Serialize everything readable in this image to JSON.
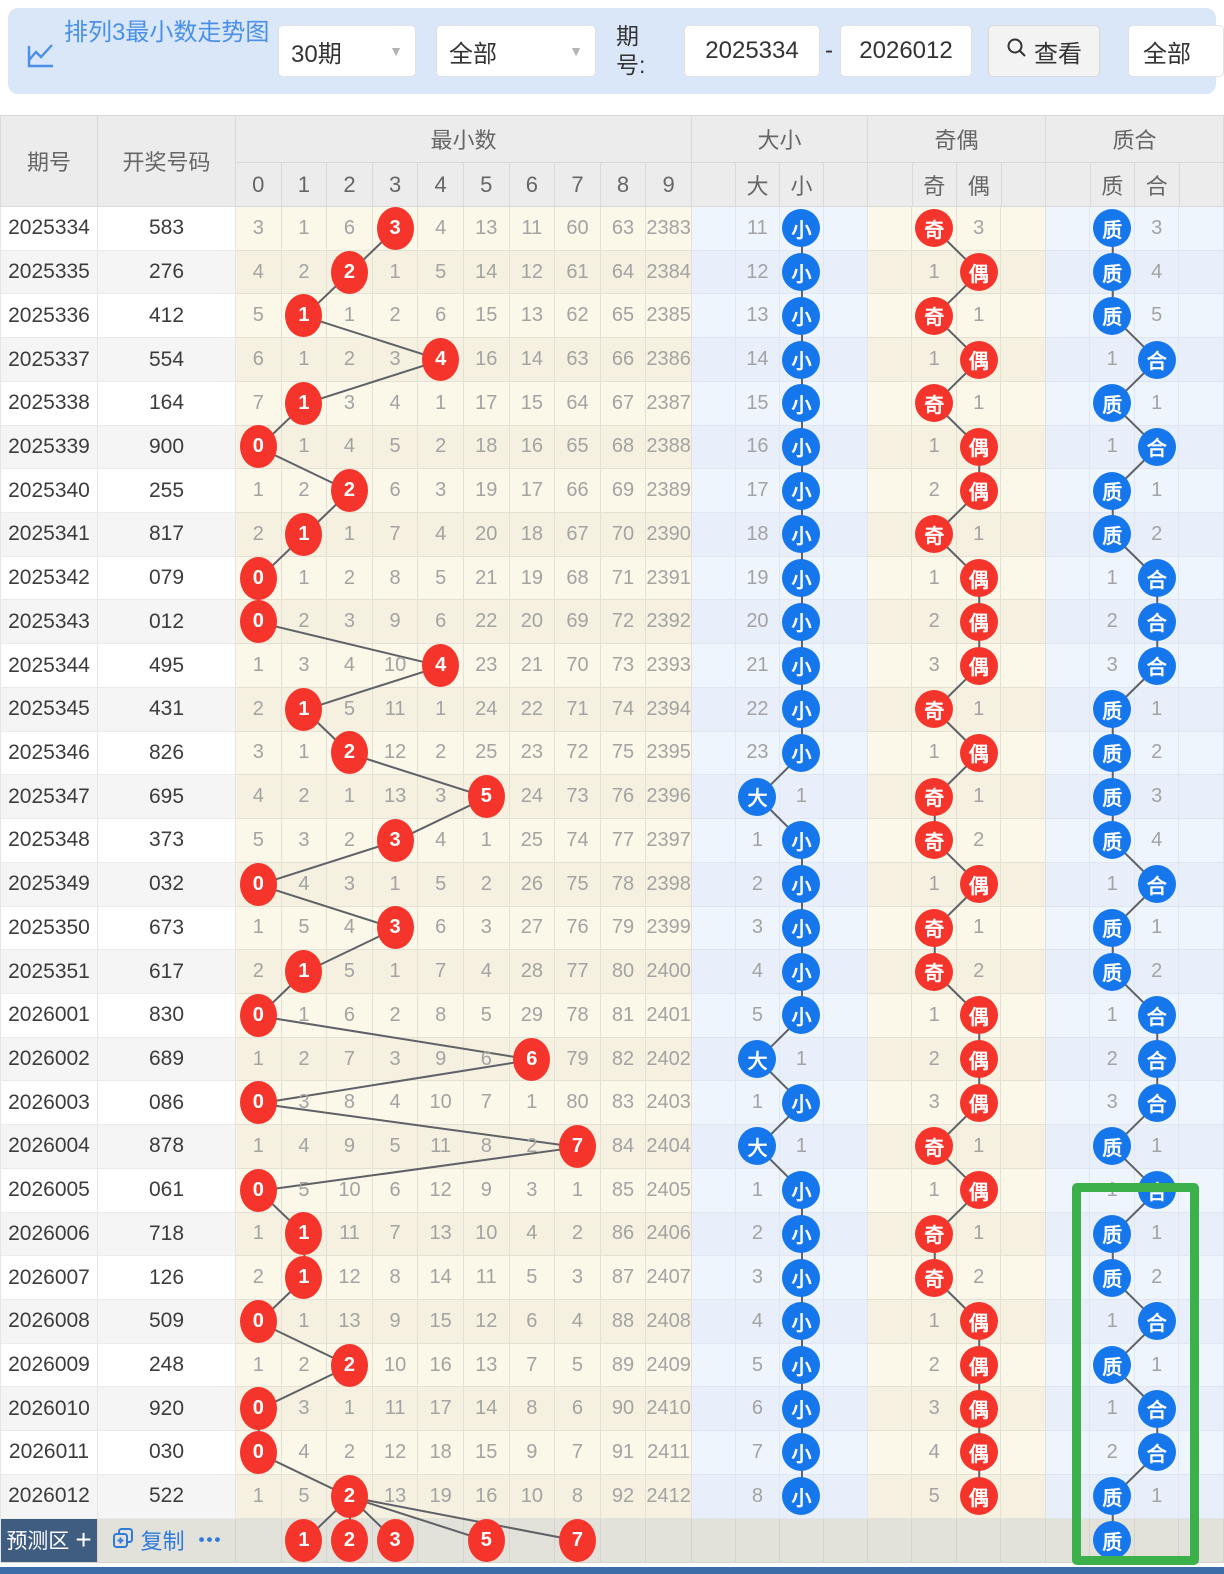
{
  "toolbar": {
    "title": "排列3最小数走势图",
    "period_select": "30期",
    "type_select": "全部",
    "issue_label": "期号:",
    "issue_from": "2025334",
    "range_separator": "-",
    "issue_to": "2026012",
    "search_label": "查看",
    "filter_select": "全部"
  },
  "table": {
    "issue_header": "期号",
    "number_header": "开奖号码",
    "groups": [
      {
        "label": "最小数",
        "cols": [
          "0",
          "1",
          "2",
          "3",
          "4",
          "5",
          "6",
          "7",
          "8",
          "9"
        ]
      },
      {
        "label": "大小",
        "cols": [
          "",
          "大",
          "小",
          ""
        ]
      },
      {
        "label": "奇偶",
        "cols": [
          "",
          "奇",
          "偶",
          ""
        ]
      },
      {
        "label": "质合",
        "cols": [
          "",
          "质",
          "合",
          ""
        ]
      }
    ],
    "rows": [
      {
        "issue": "2025334",
        "number": "583",
        "min": [
          "3",
          "1",
          "6",
          "3",
          "4",
          "13",
          "11",
          "60",
          "63",
          "2383"
        ],
        "minHit": 3,
        "dx": [
          "11",
          "小"
        ],
        "dxHit": 1,
        "jo": [
          "奇",
          "3"
        ],
        "joHit": 0,
        "zh": [
          "质",
          "3"
        ],
        "zhHit": 0
      },
      {
        "issue": "2025335",
        "number": "276",
        "min": [
          "4",
          "2",
          "2",
          "1",
          "5",
          "14",
          "12",
          "61",
          "64",
          "2384"
        ],
        "minHit": 2,
        "dx": [
          "12",
          "小"
        ],
        "dxHit": 1,
        "jo": [
          "1",
          "偶"
        ],
        "joHit": 1,
        "zh": [
          "质",
          "4"
        ],
        "zhHit": 0
      },
      {
        "issue": "2025336",
        "number": "412",
        "min": [
          "5",
          "1",
          "1",
          "2",
          "6",
          "15",
          "13",
          "62",
          "65",
          "2385"
        ],
        "minHit": 1,
        "dx": [
          "13",
          "小"
        ],
        "dxHit": 1,
        "jo": [
          "奇",
          "1"
        ],
        "joHit": 0,
        "zh": [
          "质",
          "5"
        ],
        "zhHit": 0
      },
      {
        "issue": "2025337",
        "number": "554",
        "min": [
          "6",
          "1",
          "2",
          "3",
          "4",
          "16",
          "14",
          "63",
          "66",
          "2386"
        ],
        "minHit": 4,
        "dx": [
          "14",
          "小"
        ],
        "dxHit": 1,
        "jo": [
          "1",
          "偶"
        ],
        "joHit": 1,
        "zh": [
          "1",
          "合"
        ],
        "zhHit": 1
      },
      {
        "issue": "2025338",
        "number": "164",
        "min": [
          "7",
          "1",
          "3",
          "4",
          "1",
          "17",
          "15",
          "64",
          "67",
          "2387"
        ],
        "minHit": 1,
        "dx": [
          "15",
          "小"
        ],
        "dxHit": 1,
        "jo": [
          "奇",
          "1"
        ],
        "joHit": 0,
        "zh": [
          "质",
          "1"
        ],
        "zhHit": 0
      },
      {
        "issue": "2025339",
        "number": "900",
        "min": [
          "0",
          "1",
          "4",
          "5",
          "2",
          "18",
          "16",
          "65",
          "68",
          "2388"
        ],
        "minHit": 0,
        "dx": [
          "16",
          "小"
        ],
        "dxHit": 1,
        "jo": [
          "1",
          "偶"
        ],
        "joHit": 1,
        "zh": [
          "1",
          "合"
        ],
        "zhHit": 1
      },
      {
        "issue": "2025340",
        "number": "255",
        "min": [
          "1",
          "2",
          "2",
          "6",
          "3",
          "19",
          "17",
          "66",
          "69",
          "2389"
        ],
        "minHit": 2,
        "dx": [
          "17",
          "小"
        ],
        "dxHit": 1,
        "jo": [
          "2",
          "偶"
        ],
        "joHit": 1,
        "zh": [
          "质",
          "1"
        ],
        "zhHit": 0
      },
      {
        "issue": "2025341",
        "number": "817",
        "min": [
          "2",
          "1",
          "1",
          "7",
          "4",
          "20",
          "18",
          "67",
          "70",
          "2390"
        ],
        "minHit": 1,
        "dx": [
          "18",
          "小"
        ],
        "dxHit": 1,
        "jo": [
          "奇",
          "1"
        ],
        "joHit": 0,
        "zh": [
          "质",
          "2"
        ],
        "zhHit": 0
      },
      {
        "issue": "2025342",
        "number": "079",
        "min": [
          "0",
          "1",
          "2",
          "8",
          "5",
          "21",
          "19",
          "68",
          "71",
          "2391"
        ],
        "minHit": 0,
        "dx": [
          "19",
          "小"
        ],
        "dxHit": 1,
        "jo": [
          "1",
          "偶"
        ],
        "joHit": 1,
        "zh": [
          "1",
          "合"
        ],
        "zhHit": 1
      },
      {
        "issue": "2025343",
        "number": "012",
        "min": [
          "0",
          "2",
          "3",
          "9",
          "6",
          "22",
          "20",
          "69",
          "72",
          "2392"
        ],
        "minHit": 0,
        "dx": [
          "20",
          "小"
        ],
        "dxHit": 1,
        "jo": [
          "2",
          "偶"
        ],
        "joHit": 1,
        "zh": [
          "2",
          "合"
        ],
        "zhHit": 1
      },
      {
        "issue": "2025344",
        "number": "495",
        "min": [
          "1",
          "3",
          "4",
          "10",
          "4",
          "23",
          "21",
          "70",
          "73",
          "2393"
        ],
        "minHit": 4,
        "dx": [
          "21",
          "小"
        ],
        "dxHit": 1,
        "jo": [
          "3",
          "偶"
        ],
        "joHit": 1,
        "zh": [
          "3",
          "合"
        ],
        "zhHit": 1
      },
      {
        "issue": "2025345",
        "number": "431",
        "min": [
          "2",
          "1",
          "5",
          "11",
          "1",
          "24",
          "22",
          "71",
          "74",
          "2394"
        ],
        "minHit": 1,
        "dx": [
          "22",
          "小"
        ],
        "dxHit": 1,
        "jo": [
          "奇",
          "1"
        ],
        "joHit": 0,
        "zh": [
          "质",
          "1"
        ],
        "zhHit": 0
      },
      {
        "issue": "2025346",
        "number": "826",
        "min": [
          "3",
          "1",
          "2",
          "12",
          "2",
          "25",
          "23",
          "72",
          "75",
          "2395"
        ],
        "minHit": 2,
        "dx": [
          "23",
          "小"
        ],
        "dxHit": 1,
        "jo": [
          "1",
          "偶"
        ],
        "joHit": 1,
        "zh": [
          "质",
          "2"
        ],
        "zhHit": 0
      },
      {
        "issue": "2025347",
        "number": "695",
        "min": [
          "4",
          "2",
          "1",
          "13",
          "3",
          "5",
          "24",
          "73",
          "76",
          "2396"
        ],
        "minHit": 5,
        "dx": [
          "大",
          "1"
        ],
        "dxHit": 0,
        "jo": [
          "奇",
          "1"
        ],
        "joHit": 0,
        "zh": [
          "质",
          "3"
        ],
        "zhHit": 0
      },
      {
        "issue": "2025348",
        "number": "373",
        "min": [
          "5",
          "3",
          "2",
          "3",
          "4",
          "1",
          "25",
          "74",
          "77",
          "2397"
        ],
        "minHit": 3,
        "dx": [
          "1",
          "小"
        ],
        "dxHit": 1,
        "jo": [
          "奇",
          "2"
        ],
        "joHit": 0,
        "zh": [
          "质",
          "4"
        ],
        "zhHit": 0
      },
      {
        "issue": "2025349",
        "number": "032",
        "min": [
          "0",
          "4",
          "3",
          "1",
          "5",
          "2",
          "26",
          "75",
          "78",
          "2398"
        ],
        "minHit": 0,
        "dx": [
          "2",
          "小"
        ],
        "dxHit": 1,
        "jo": [
          "1",
          "偶"
        ],
        "joHit": 1,
        "zh": [
          "1",
          "合"
        ],
        "zhHit": 1
      },
      {
        "issue": "2025350",
        "number": "673",
        "min": [
          "1",
          "5",
          "4",
          "3",
          "6",
          "3",
          "27",
          "76",
          "79",
          "2399"
        ],
        "minHit": 3,
        "dx": [
          "3",
          "小"
        ],
        "dxHit": 1,
        "jo": [
          "奇",
          "1"
        ],
        "joHit": 0,
        "zh": [
          "质",
          "1"
        ],
        "zhHit": 0
      },
      {
        "issue": "2025351",
        "number": "617",
        "min": [
          "2",
          "1",
          "5",
          "1",
          "7",
          "4",
          "28",
          "77",
          "80",
          "2400"
        ],
        "minHit": 1,
        "dx": [
          "4",
          "小"
        ],
        "dxHit": 1,
        "jo": [
          "奇",
          "2"
        ],
        "joHit": 0,
        "zh": [
          "质",
          "2"
        ],
        "zhHit": 0
      },
      {
        "issue": "2026001",
        "number": "830",
        "min": [
          "0",
          "1",
          "6",
          "2",
          "8",
          "5",
          "29",
          "78",
          "81",
          "2401"
        ],
        "minHit": 0,
        "dx": [
          "5",
          "小"
        ],
        "dxHit": 1,
        "jo": [
          "1",
          "偶"
        ],
        "joHit": 1,
        "zh": [
          "1",
          "合"
        ],
        "zhHit": 1
      },
      {
        "issue": "2026002",
        "number": "689",
        "min": [
          "1",
          "2",
          "7",
          "3",
          "9",
          "6",
          "6",
          "79",
          "82",
          "2402"
        ],
        "minHit": 6,
        "dx": [
          "大",
          "1"
        ],
        "dxHit": 0,
        "jo": [
          "2",
          "偶"
        ],
        "joHit": 1,
        "zh": [
          "2",
          "合"
        ],
        "zhHit": 1
      },
      {
        "issue": "2026003",
        "number": "086",
        "min": [
          "0",
          "3",
          "8",
          "4",
          "10",
          "7",
          "1",
          "80",
          "83",
          "2403"
        ],
        "minHit": 0,
        "dx": [
          "1",
          "小"
        ],
        "dxHit": 1,
        "jo": [
          "3",
          "偶"
        ],
        "joHit": 1,
        "zh": [
          "3",
          "合"
        ],
        "zhHit": 1
      },
      {
        "issue": "2026004",
        "number": "878",
        "min": [
          "1",
          "4",
          "9",
          "5",
          "11",
          "8",
          "2",
          "7",
          "84",
          "2404"
        ],
        "minHit": 7,
        "dx": [
          "大",
          "1"
        ],
        "dxHit": 0,
        "jo": [
          "奇",
          "1"
        ],
        "joHit": 0,
        "zh": [
          "质",
          "1"
        ],
        "zhHit": 0
      },
      {
        "issue": "2026005",
        "number": "061",
        "min": [
          "0",
          "5",
          "10",
          "6",
          "12",
          "9",
          "3",
          "1",
          "85",
          "2405"
        ],
        "minHit": 0,
        "dx": [
          "1",
          "小"
        ],
        "dxHit": 1,
        "jo": [
          "1",
          "偶"
        ],
        "joHit": 1,
        "zh": [
          "1",
          "合"
        ],
        "zhHit": 1
      },
      {
        "issue": "2026006",
        "number": "718",
        "min": [
          "1",
          "1",
          "11",
          "7",
          "13",
          "10",
          "4",
          "2",
          "86",
          "2406"
        ],
        "minHit": 1,
        "dx": [
          "2",
          "小"
        ],
        "dxHit": 1,
        "jo": [
          "奇",
          "1"
        ],
        "joHit": 0,
        "zh": [
          "质",
          "1"
        ],
        "zhHit": 0
      },
      {
        "issue": "2026007",
        "number": "126",
        "min": [
          "2",
          "1",
          "12",
          "8",
          "14",
          "11",
          "5",
          "3",
          "87",
          "2407"
        ],
        "minHit": 1,
        "dx": [
          "3",
          "小"
        ],
        "dxHit": 1,
        "jo": [
          "奇",
          "2"
        ],
        "joHit": 0,
        "zh": [
          "质",
          "2"
        ],
        "zhHit": 0
      },
      {
        "issue": "2026008",
        "number": "509",
        "min": [
          "0",
          "1",
          "13",
          "9",
          "15",
          "12",
          "6",
          "4",
          "88",
          "2408"
        ],
        "minHit": 0,
        "dx": [
          "4",
          "小"
        ],
        "dxHit": 1,
        "jo": [
          "1",
          "偶"
        ],
        "joHit": 1,
        "zh": [
          "1",
          "合"
        ],
        "zhHit": 1
      },
      {
        "issue": "2026009",
        "number": "248",
        "min": [
          "1",
          "2",
          "2",
          "10",
          "16",
          "13",
          "7",
          "5",
          "89",
          "2409"
        ],
        "minHit": 2,
        "dx": [
          "5",
          "小"
        ],
        "dxHit": 1,
        "jo": [
          "2",
          "偶"
        ],
        "joHit": 1,
        "zh": [
          "质",
          "1"
        ],
        "zhHit": 0
      },
      {
        "issue": "2026010",
        "number": "920",
        "min": [
          "0",
          "3",
          "1",
          "11",
          "17",
          "14",
          "8",
          "6",
          "90",
          "2410"
        ],
        "minHit": 0,
        "dx": [
          "6",
          "小"
        ],
        "dxHit": 1,
        "jo": [
          "3",
          "偶"
        ],
        "joHit": 1,
        "zh": [
          "1",
          "合"
        ],
        "zhHit": 1
      },
      {
        "issue": "2026011",
        "number": "030",
        "min": [
          "0",
          "4",
          "2",
          "12",
          "18",
          "15",
          "9",
          "7",
          "91",
          "2411"
        ],
        "minHit": 0,
        "dx": [
          "7",
          "小"
        ],
        "dxHit": 1,
        "jo": [
          "4",
          "偶"
        ],
        "joHit": 1,
        "zh": [
          "2",
          "合"
        ],
        "zhHit": 1
      },
      {
        "issue": "2026012",
        "number": "522",
        "min": [
          "1",
          "5",
          "2",
          "13",
          "19",
          "16",
          "10",
          "8",
          "92",
          "2412"
        ],
        "minHit": 2,
        "dx": [
          "8",
          "小"
        ],
        "dxHit": 1,
        "jo": [
          "5",
          "偶"
        ],
        "joHit": 1,
        "zh": [
          "质",
          "1"
        ],
        "zhHit": 0
      }
    ]
  },
  "footer": {
    "predict_label": "预测区",
    "plus": "+",
    "copy_label": "复制",
    "more_label": "•••",
    "min_predictions": [
      {
        "col": 1,
        "value": "1"
      },
      {
        "col": 2,
        "value": "2"
      },
      {
        "col": 3,
        "value": "3"
      },
      {
        "col": 5,
        "value": "5"
      },
      {
        "col": 7,
        "value": "7"
      }
    ],
    "zhihe_prediction": "质"
  },
  "colors": {
    "accent_red": "#f5352b",
    "accent_blue": "#1677ec",
    "highlight_green": "#3cb04a",
    "topbar_bg": "#d9e7f9",
    "title_blue": "#4a90e8",
    "bottom_bar": "#3d6da8"
  }
}
